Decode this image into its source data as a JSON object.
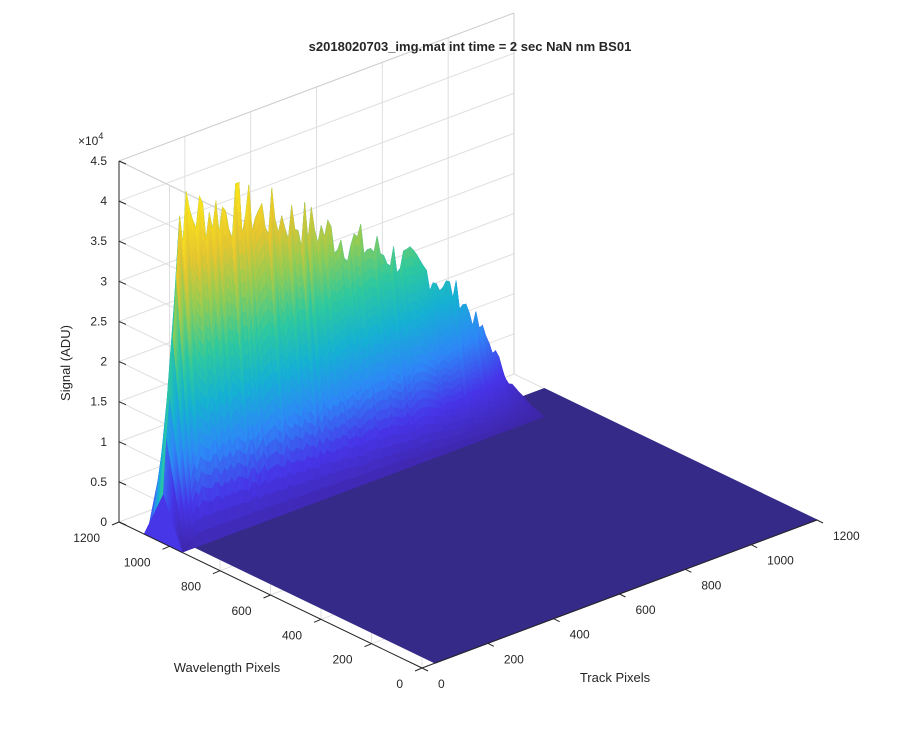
{
  "chart_data": {
    "type": "surface",
    "title": "s2018020703_img.mat int time = 2 sec  NaN nm BS01",
    "xlabel": "Track Pixels",
    "ylabel": "Wavelength Pixels",
    "zlabel": "Signal (ADU)",
    "z_exponent": "×10",
    "z_exponent_power": "4",
    "xlim": [
      0,
      1200
    ],
    "ylim": [
      0,
      1200
    ],
    "zlim": [
      0,
      4.5
    ],
    "xticks": [
      "0",
      "200",
      "400",
      "600",
      "800",
      "1000",
      "1200"
    ],
    "yticks": [
      "0",
      "200",
      "400",
      "600",
      "800",
      "1000",
      "1200"
    ],
    "zticks": [
      "0",
      "0.5",
      "1",
      "1.5",
      "2",
      "2.5",
      "3",
      "3.5",
      "4",
      "4.5"
    ],
    "grid": true,
    "colormap": [
      "#3e26a8",
      "#4734e8",
      "#2e87f7",
      "#15b1d3",
      "#2ec99e",
      "#91cc55",
      "#e6c52f",
      "#f9e11e"
    ],
    "floor_color": "#352a87",
    "signal_region": {
      "track_pixels": [
        0,
        1100
      ],
      "wavelength_pixels": [
        950,
        1100
      ]
    },
    "signal_profile": {
      "track_pixels": [
        0,
        50,
        100,
        200,
        300,
        400,
        500,
        600,
        700,
        800,
        900,
        1000,
        1050,
        1100
      ],
      "signal_e4": [
        0.6,
        4.0,
        3.95,
        3.85,
        3.65,
        3.4,
        3.1,
        2.8,
        2.5,
        2.15,
        1.7,
        0.9,
        0.4,
        0.1
      ]
    }
  }
}
